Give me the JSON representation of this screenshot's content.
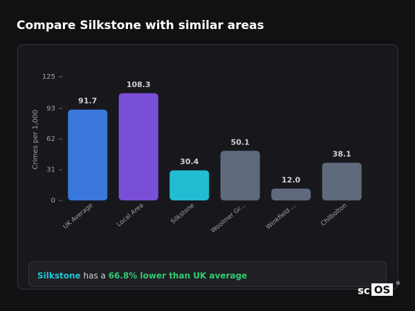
{
  "chart_data": {
    "type": "bar",
    "title": "Compare Silkstone with similar areas",
    "y_label": "Crimes per 1,000",
    "categories": [
      "UK Average",
      "Local Area",
      "Silkstone",
      "Woolmer Gr...",
      "Winkfield ...",
      "Chilbolton"
    ],
    "values": [
      91.7,
      108.3,
      30.4,
      50.1,
      12.0,
      38.1
    ],
    "value_labels": [
      "91.7",
      "108.3",
      "30.4",
      "50.1",
      "12.0",
      "38.1"
    ],
    "colors": [
      "#3a78dc",
      "#7a4fd8",
      "#22bdd2",
      "#5e6a7c",
      "#5e6a7c",
      "#5e6a7c"
    ],
    "ylim": [
      0,
      125
    ],
    "yticks": [
      0,
      31,
      62,
      93,
      125
    ]
  },
  "summary": {
    "area": "Silkstone",
    "text": "has a",
    "highlight": "66.8% lower than UK average"
  },
  "logo": {
    "prefix": "sc",
    "boxed": "OS",
    "mark": "®"
  }
}
